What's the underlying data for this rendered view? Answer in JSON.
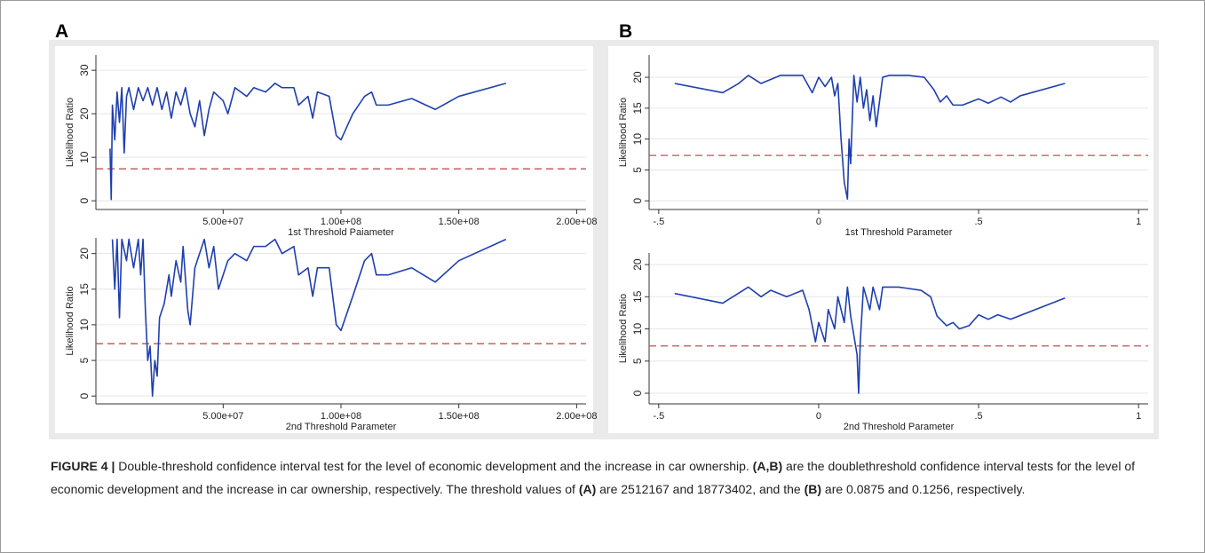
{
  "figure": {
    "panel_labels": [
      "A",
      "B"
    ],
    "caption": [
      {
        "text": "FIGURE 4 |",
        "bold": true
      },
      {
        "text": " Double-threshold confidence interval test for the level of economic development and the increase in car ownership. ",
        "bold": false
      },
      {
        "text": "(A,B)",
        "bold": true
      },
      {
        "text": " are the doublethreshold confidence interval tests for the level of economic development and the increase in car ownership, respectively. The threshold values of ",
        "bold": false
      },
      {
        "text": "(A)",
        "bold": true
      },
      {
        "text": " are 2512167 and 18773402, and the ",
        "bold": false
      },
      {
        "text": "(B)",
        "bold": true
      },
      {
        "text": " are 0.0875 and 0.1256, respectively.",
        "bold": false
      }
    ]
  },
  "chart_data": [
    {
      "type": "line",
      "x_label": "1st Threshold Paiameter",
      "y_label": "Likelihood Ratio",
      "grid": true,
      "xlim": [
        -4000000,
        204000000
      ],
      "ylim": [
        -2,
        33.5
      ],
      "xticks": [
        {
          "value": 50000000,
          "label": "5.00e+07"
        },
        {
          "value": 100000000,
          "label": "1.00e+08"
        },
        {
          "value": 150000000,
          "label": "1.50e+08"
        },
        {
          "value": 200000000,
          "label": "2.00e+08"
        }
      ],
      "yticks": [
        0,
        10,
        20,
        30
      ],
      "reference_line": {
        "value": 7.35,
        "color": "#c0504d"
      },
      "series": [
        {
          "color": "#1f3fb0",
          "x": [
            2000000,
            2500000,
            3000000,
            4000000,
            5000000,
            6000000,
            7000000,
            8000000,
            9000000,
            10000000,
            12000000,
            14000000,
            16000000,
            18000000,
            20000000,
            22000000,
            24000000,
            26000000,
            28000000,
            30000000,
            32000000,
            34000000,
            36000000,
            38000000,
            40000000,
            42000000,
            44000000,
            46000000,
            50000000,
            52000000,
            55000000,
            60000000,
            63000000,
            68000000,
            72000000,
            75000000,
            80000000,
            82000000,
            86000000,
            88000000,
            90000000,
            95000000,
            98000000,
            100000000,
            105000000,
            110000000,
            113000000,
            115000000,
            120000000,
            130000000,
            140000000,
            150000000,
            170000000
          ],
          "values": [
            12,
            0.3,
            22,
            14,
            25,
            18,
            26,
            11,
            24,
            26,
            21,
            26,
            23,
            26,
            22,
            26,
            21,
            25,
            19,
            25,
            22,
            26,
            20,
            17,
            23,
            15,
            21,
            25,
            23,
            20,
            26,
            24,
            26,
            25,
            27,
            26,
            26,
            22,
            24,
            19,
            25,
            24,
            15,
            14,
            20,
            24,
            25,
            22,
            22,
            23.5,
            21,
            24,
            27
          ]
        }
      ]
    },
    {
      "type": "line",
      "x_label": "1st Threshold Parameter",
      "y_label": "Likelihood Ratio",
      "grid": true,
      "xlim": [
        -0.53,
        1.03
      ],
      "ylim": [
        -1.4,
        23.6
      ],
      "xticks": [
        {
          "value": -0.5,
          "label": "-.5"
        },
        0,
        {
          "value": 0.5,
          "label": ".5"
        },
        1
      ],
      "yticks": [
        0,
        5,
        10,
        15,
        20
      ],
      "reference_line": {
        "value": 7.35,
        "color": "#c0504d"
      },
      "series": [
        {
          "color": "#1f3fb0",
          "x": [
            -0.45,
            -0.3,
            -0.25,
            -0.22,
            -0.18,
            -0.12,
            -0.05,
            -0.02,
            0.0,
            0.02,
            0.04,
            0.05,
            0.06,
            0.07,
            0.08,
            0.09,
            0.095,
            0.1,
            0.11,
            0.12,
            0.13,
            0.14,
            0.15,
            0.16,
            0.17,
            0.18,
            0.19,
            0.2,
            0.22,
            0.28,
            0.33,
            0.36,
            0.38,
            0.4,
            0.42,
            0.45,
            0.5,
            0.53,
            0.57,
            0.6,
            0.63,
            0.77
          ],
          "values": [
            19,
            17.5,
            19,
            20.3,
            19,
            20.3,
            20.3,
            17.5,
            20,
            18.5,
            20,
            17,
            19,
            10,
            3,
            0.3,
            10,
            6,
            20.3,
            16,
            20,
            15,
            18,
            13,
            17,
            12,
            16,
            20,
            20.3,
            20.3,
            20,
            18,
            16,
            17,
            15.5,
            15.5,
            16.5,
            15.8,
            16.8,
            16,
            17,
            19
          ]
        }
      ]
    },
    {
      "type": "line",
      "x_label": "2nd Threshold Parameter",
      "y_label": "Likelihood Ratio",
      "grid": true,
      "xlim": [
        -4000000,
        204000000
      ],
      "ylim": [
        -1.1,
        22.2
      ],
      "xticks": [
        {
          "value": 50000000,
          "label": "5.00e+07"
        },
        {
          "value": 100000000,
          "label": "1.00e+08"
        },
        {
          "value": 150000000,
          "label": "1.50e+08"
        },
        {
          "value": 200000000,
          "label": "2.00e+08"
        }
      ],
      "yticks": [
        0,
        5,
        10,
        15,
        20
      ],
      "reference_line": {
        "value": 7.35,
        "color": "#c0504d"
      },
      "series": [
        {
          "color": "#1f3fb0",
          "x": [
            3000000,
            4000000,
            5000000,
            6000000,
            7000000,
            9000000,
            10000000,
            12000000,
            14000000,
            15000000,
            16000000,
            17000000,
            18000000,
            19000000,
            20000000,
            21000000,
            22000000,
            23000000,
            25000000,
            27000000,
            28000000,
            30000000,
            32000000,
            33000000,
            35000000,
            36000000,
            38000000,
            40000000,
            42000000,
            44000000,
            46000000,
            48000000,
            52000000,
            55000000,
            60000000,
            63000000,
            68000000,
            72000000,
            75000000,
            80000000,
            82000000,
            86000000,
            88000000,
            90000000,
            95000000,
            98000000,
            100000000,
            105000000,
            110000000,
            113000000,
            115000000,
            120000000,
            130000000,
            140000000,
            150000000,
            170000000
          ],
          "values": [
            22,
            15,
            22,
            11,
            22,
            19,
            22,
            18,
            22,
            17,
            22,
            12,
            5,
            7,
            0,
            5,
            2.8,
            11,
            13,
            17,
            14,
            19,
            16,
            21,
            12,
            10,
            18,
            20,
            22,
            18,
            21,
            15,
            19,
            20,
            19,
            21,
            21,
            22,
            20,
            21,
            17,
            18,
            14,
            18,
            18,
            10,
            9.2,
            14,
            19,
            20,
            17,
            17,
            18,
            16,
            19,
            22
          ]
        }
      ]
    },
    {
      "type": "line",
      "x_label": "2nd Threshold Parameter",
      "y_label": "Likelihood Ratio",
      "grid": true,
      "xlim": [
        -0.53,
        1.03
      ],
      "ylim": [
        -1.65,
        21.8
      ],
      "xticks": [
        {
          "value": -0.5,
          "label": "-.5"
        },
        0,
        {
          "value": 0.5,
          "label": ".5"
        },
        1
      ],
      "yticks": [
        0,
        5,
        10,
        15,
        20
      ],
      "reference_line": {
        "value": 7.35,
        "color": "#c0504d"
      },
      "series": [
        {
          "color": "#1f3fb0",
          "x": [
            -0.45,
            -0.3,
            -0.22,
            -0.18,
            -0.15,
            -0.1,
            -0.05,
            -0.03,
            -0.01,
            0.0,
            0.02,
            0.03,
            0.05,
            0.06,
            0.08,
            0.09,
            0.1,
            0.11,
            0.12,
            0.125,
            0.13,
            0.14,
            0.16,
            0.17,
            0.19,
            0.2,
            0.25,
            0.32,
            0.35,
            0.37,
            0.4,
            0.42,
            0.44,
            0.47,
            0.5,
            0.53,
            0.56,
            0.6,
            0.77
          ],
          "values": [
            15.5,
            14,
            16.5,
            15,
            16,
            15,
            16,
            13,
            8,
            11,
            8,
            13,
            10,
            15,
            11,
            16.5,
            12,
            9,
            6,
            0,
            8,
            16.5,
            13,
            16.5,
            13,
            16.5,
            16.5,
            16,
            15,
            12,
            10.5,
            11,
            10,
            10.5,
            12.2,
            11.5,
            12.2,
            11.5,
            14.8
          ]
        }
      ]
    }
  ]
}
